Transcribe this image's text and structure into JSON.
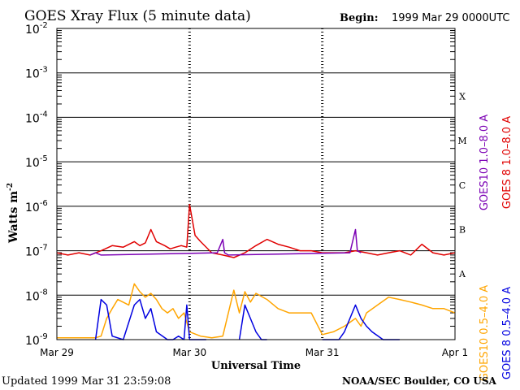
{
  "chart_data": {
    "type": "line",
    "title": "GOES Xray Flux (5 minute data)",
    "begin_label": "Begin:",
    "begin_value": "1999 Mar 29 0000UTC",
    "ylabel": "Watts m",
    "ylabel_sup": "-2",
    "xlabel": "Universal Time",
    "yscale": "log",
    "ylim": [
      1e-09,
      0.01
    ],
    "yticks": [
      {
        "base": "10",
        "exp": "-2",
        "value": 0.01
      },
      {
        "base": "10",
        "exp": "-3",
        "value": 0.001
      },
      {
        "base": "10",
        "exp": "-4",
        "value": 0.0001
      },
      {
        "base": "10",
        "exp": "-5",
        "value": 1e-05
      },
      {
        "base": "10",
        "exp": "-6",
        "value": 1e-06
      },
      {
        "base": "10",
        "exp": "-7",
        "value": 1e-07
      },
      {
        "base": "10",
        "exp": "-8",
        "value": 1e-08
      },
      {
        "base": "10",
        "exp": "-9",
        "value": 1e-09
      }
    ],
    "xlim_days": [
      0,
      3
    ],
    "xticks": [
      "Mar 29",
      "Mar 30",
      "Mar 31",
      "Apr 1"
    ],
    "flare_classes": [
      {
        "label": "X",
        "value": 0.0003
      },
      {
        "label": "M",
        "value": 3e-05
      },
      {
        "label": "C",
        "value": 3e-06
      },
      {
        "label": "B",
        "value": 3e-07
      },
      {
        "label": "A",
        "value": 3e-08
      }
    ],
    "legend": [
      {
        "name": "GOES10 1.0–8.0 A",
        "color": "#7b00b4"
      },
      {
        "name": "GOES 8 1.0–8.0 A",
        "color": "#e00000"
      },
      {
        "name": "GOES10 0.5–4.0 A",
        "color": "#ffa500"
      },
      {
        "name": "GOES 8 0.5–4.0 A",
        "color": "#0000e0"
      }
    ],
    "series": [
      {
        "name": "GOES 8 1.0–8.0 A",
        "color": "#e00000",
        "x": [
          "1999-03-29 00:00",
          "1999-03-29 02:00",
          "1999-03-29 04:00",
          "1999-03-29 06:00",
          "1999-03-29 08:00",
          "1999-03-29 10:00",
          "1999-03-29 12:00",
          "1999-03-29 14:00",
          "1999-03-29 15:00",
          "1999-03-29 16:00",
          "1999-03-29 17:00",
          "1999-03-29 18:00",
          "1999-03-29 19:30",
          "1999-03-29 20:30",
          "1999-03-29 21:30",
          "1999-03-29 22:30",
          "1999-03-29 23:30",
          "1999-03-30 00:00",
          "1999-03-30 01:00",
          "1999-03-30 02:00",
          "1999-03-30 04:00",
          "1999-03-30 06:00",
          "1999-03-30 08:00",
          "1999-03-30 10:00",
          "1999-03-30 12:00",
          "1999-03-30 14:00",
          "1999-03-30 16:00",
          "1999-03-30 18:00",
          "1999-03-30 20:00",
          "1999-03-30 22:00",
          "1999-03-31 00:00",
          "1999-03-31 02:00",
          "1999-03-31 04:00",
          "1999-03-31 06:00",
          "1999-03-31 08:00",
          "1999-03-31 10:00",
          "1999-03-31 12:00",
          "1999-03-31 14:00",
          "1999-03-31 16:00",
          "1999-03-31 18:00",
          "1999-03-31 20:00",
          "1999-03-31 22:00",
          "1999-03-31 23:59"
        ],
        "y": [
          9e-08,
          8e-08,
          9e-08,
          8e-08,
          1e-07,
          1.3e-07,
          1.2e-07,
          1.6e-07,
          1.3e-07,
          1.5e-07,
          3e-07,
          1.6e-07,
          1.3e-07,
          1.1e-07,
          1.2e-07,
          1.3e-07,
          1.2e-07,
          1.1e-06,
          2.2e-07,
          1.6e-07,
          9e-08,
          8e-08,
          7e-08,
          9e-08,
          1.3e-07,
          1.8e-07,
          1.4e-07,
          1.2e-07,
          1e-07,
          1e-07,
          9e-08,
          9e-08,
          9e-08,
          1e-07,
          9e-08,
          8e-08,
          9e-08,
          1e-07,
          8e-08,
          1.4e-07,
          9e-08,
          8e-08,
          9e-08
        ]
      },
      {
        "name": "GOES10 1.0–8.0 A",
        "color": "#7b00b4",
        "x": [
          "1999-03-29 06:00",
          "1999-03-29 07:00",
          "1999-03-29 08:00",
          "1999-03-30 05:00",
          "1999-03-30 06:00",
          "1999-03-30 06:20",
          "1999-03-30 07:00",
          "1999-03-31 05:00",
          "1999-03-31 06:00",
          "1999-03-31 06:20",
          "1999-03-31 07:00"
        ],
        "y": [
          8e-08,
          9e-08,
          8e-08,
          9e-08,
          1.8e-07,
          9e-08,
          8e-08,
          9e-08,
          3e-07,
          1e-07,
          9e-08
        ]
      },
      {
        "name": "GOES10 0.5–4.0 A",
        "color": "#ffa500",
        "x": [
          "1999-03-29 00:00",
          "1999-03-29 07:00",
          "1999-03-29 08:00",
          "1999-03-29 09:00",
          "1999-03-29 10:00",
          "1999-03-29 11:00",
          "1999-03-29 13:00",
          "1999-03-29 14:00",
          "1999-03-29 15:00",
          "1999-03-29 16:00",
          "1999-03-29 17:00",
          "1999-03-29 18:00",
          "1999-03-29 19:00",
          "1999-03-29 20:00",
          "1999-03-29 21:00",
          "1999-03-29 22:00",
          "1999-03-29 23:00",
          "1999-03-30 00:00",
          "1999-03-30 02:00",
          "1999-03-30 04:00",
          "1999-03-30 06:00",
          "1999-03-30 08:00",
          "1999-03-30 09:00",
          "1999-03-30 10:00",
          "1999-03-30 11:00",
          "1999-03-30 12:00",
          "1999-03-30 14:00",
          "1999-03-30 16:00",
          "1999-03-30 18:00",
          "1999-03-30 20:00",
          "1999-03-30 22:00",
          "1999-03-31 00:00",
          "1999-03-31 02:00",
          "1999-03-31 04:00",
          "1999-03-31 06:00",
          "1999-03-31 07:00",
          "1999-03-31 08:00",
          "1999-03-31 10:00",
          "1999-03-31 12:00",
          "1999-03-31 14:00",
          "1999-03-31 16:00",
          "1999-03-31 18:00",
          "1999-03-31 20:00",
          "1999-03-31 22:00",
          "1999-03-31 23:59"
        ],
        "y": [
          1.1e-09,
          1.1e-09,
          1.2e-09,
          3e-09,
          5e-09,
          8e-09,
          6e-09,
          1.8e-08,
          1.2e-08,
          9e-09,
          1.1e-08,
          8e-09,
          5e-09,
          4e-09,
          5e-09,
          3e-09,
          4e-09,
          1.5e-09,
          1.2e-09,
          1.1e-09,
          1.2e-09,
          1.3e-08,
          4e-09,
          1.2e-08,
          7e-09,
          1.1e-08,
          8e-09,
          5e-09,
          4e-09,
          4e-09,
          4e-09,
          1.3e-09,
          1.5e-09,
          2e-09,
          3e-09,
          2e-09,
          4e-09,
          6e-09,
          9e-09,
          8e-09,
          7e-09,
          6e-09,
          5e-09,
          5e-09,
          4e-09
        ]
      },
      {
        "name": "GOES 8 0.5–4.0 A",
        "color": "#0000e0",
        "x": [
          "1999-03-29 00:00",
          "1999-03-29 06:00",
          "1999-03-29 07:00",
          "1999-03-29 08:00",
          "1999-03-29 09:00",
          "1999-03-29 10:00",
          "1999-03-29 12:00",
          "1999-03-29 14:00",
          "1999-03-29 15:00",
          "1999-03-29 16:00",
          "1999-03-29 17:00",
          "1999-03-29 18:00",
          "1999-03-29 20:00",
          "1999-03-29 21:00",
          "1999-03-29 22:00",
          "1999-03-29 23:00",
          "1999-03-29 23:30",
          "1999-03-30 00:00",
          "1999-03-30 03:00",
          "1999-03-30 06:00",
          "1999-03-30 09:00",
          "1999-03-30 10:00",
          "1999-03-30 11:00",
          "1999-03-30 12:00",
          "1999-03-30 13:00",
          "1999-03-30 14:00",
          "1999-03-30 16:00",
          "1999-03-30 18:00",
          "1999-03-30 20:00",
          "1999-03-30 22:00",
          "1999-03-31 00:00",
          "1999-03-31 03:00",
          "1999-03-31 04:00",
          "1999-03-31 05:00",
          "1999-03-31 06:00",
          "1999-03-31 07:00",
          "1999-03-31 08:00",
          "1999-03-31 09:00",
          "1999-03-31 11:00",
          "1999-03-31 14:00",
          "1999-03-31 16:00",
          "1999-03-31 18:00",
          "1999-03-31 20:00"
        ],
        "y": [
          null,
          null,
          1e-09,
          8e-09,
          6e-09,
          1.2e-09,
          1e-09,
          6e-09,
          8e-09,
          3e-09,
          5e-09,
          1.5e-09,
          1e-09,
          1e-09,
          1.2e-09,
          1e-09,
          6e-09,
          1e-09,
          1e-09,
          null,
          1e-09,
          6e-09,
          3e-09,
          1.5e-09,
          1e-09,
          1e-09,
          null,
          null,
          null,
          null,
          1e-09,
          1e-09,
          1.5e-09,
          3e-09,
          6e-09,
          3e-09,
          2e-09,
          1.5e-09,
          1e-09,
          1e-09,
          null,
          null,
          null
        ]
      }
    ]
  },
  "footer": {
    "updated": "Updated 1999 Mar 31 23:59:08",
    "credit": "NOAA/SEC Boulder, CO USA"
  }
}
